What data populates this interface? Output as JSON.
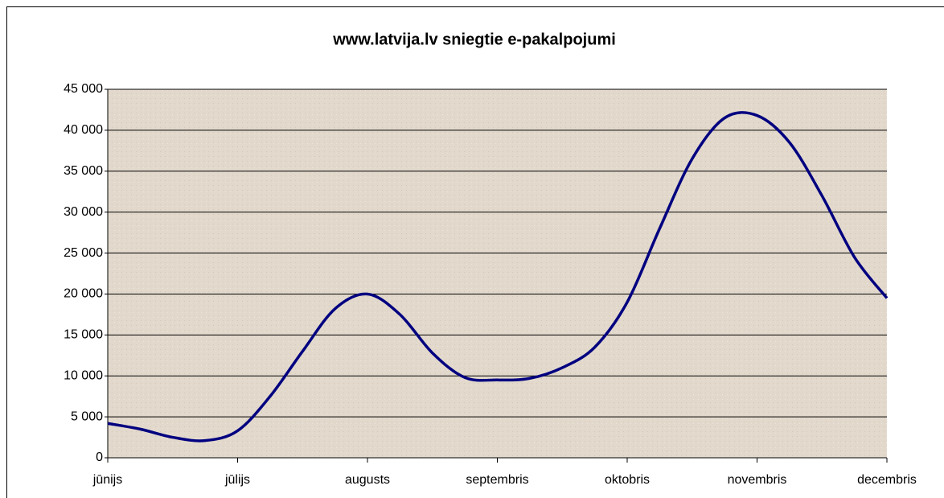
{
  "chart_data": {
    "type": "line",
    "title": "www.latvija.lv sniegtie e-pakalpojumi",
    "categories": [
      "jūnijs",
      null,
      null,
      null,
      "jūlijs",
      null,
      null,
      null,
      "augusts",
      null,
      null,
      null,
      "septembris",
      null,
      null,
      null,
      "oktobris",
      null,
      null,
      null,
      "novembris",
      null,
      null,
      null,
      "decembris"
    ],
    "series": [
      {
        "name": "e-pakalpojumi",
        "color": "#000080",
        "values": [
          4200,
          3500,
          2500,
          2100,
          3300,
          7500,
          13000,
          18200,
          20000,
          17500,
          12800,
          9800,
          9500,
          9700,
          11000,
          13500,
          19000,
          28000,
          36500,
          41500,
          41800,
          38500,
          32000,
          24500,
          19500
        ]
      }
    ],
    "ylim": [
      0,
      45000
    ],
    "yticks": [
      0,
      {
        "value": 5000,
        "label": "5 000"
      },
      {
        "value": 10000,
        "label": "10 000"
      },
      {
        "value": 15000,
        "label": "15 000"
      },
      {
        "value": 20000,
        "label": "20 000"
      },
      {
        "value": 25000,
        "label": "25 000"
      },
      {
        "value": 30000,
        "label": "30 000"
      },
      {
        "value": 35000,
        "label": "35 000"
      },
      {
        "value": 40000,
        "label": "40 000"
      },
      {
        "value": 45000,
        "label": "45 000"
      }
    ],
    "grid": true
  }
}
